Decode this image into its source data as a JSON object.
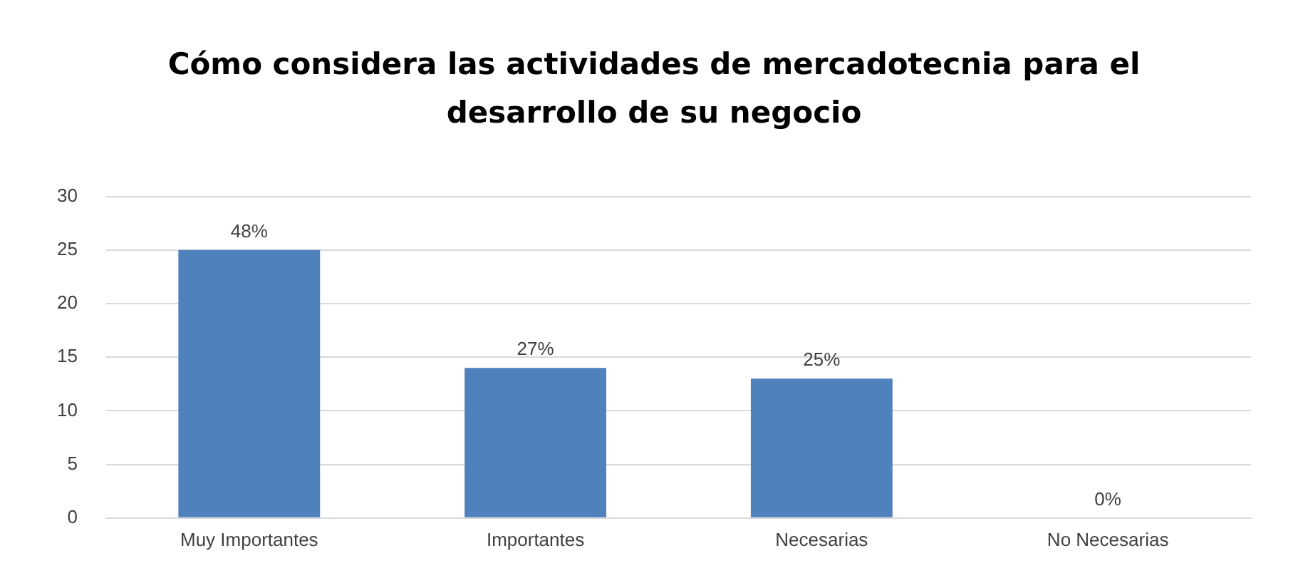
{
  "chart_data": {
    "type": "bar",
    "title": "Cómo considera las actividades de mercadotecnia para el desarrollo de su negocio",
    "categories": [
      "Muy Importantes",
      "Importantes",
      "Necesarias",
      "No Necesarias"
    ],
    "values": [
      25,
      14,
      13,
      0
    ],
    "color": "#4f81bd",
    "annotations": [
      {
        "text": "48%",
        "x": "Muy Importantes",
        "y": 25
      },
      {
        "text": "27%",
        "x": "Importantes",
        "y": 14
      },
      {
        "text": "25%",
        "x": "Necesarias",
        "y": 13
      },
      {
        "text": "0%",
        "x": "No Necesarias",
        "y": 0
      }
    ],
    "ylim": [
      0,
      30
    ],
    "yticks": [
      0,
      5,
      10,
      15,
      20,
      25,
      30
    ],
    "grid": "y"
  }
}
